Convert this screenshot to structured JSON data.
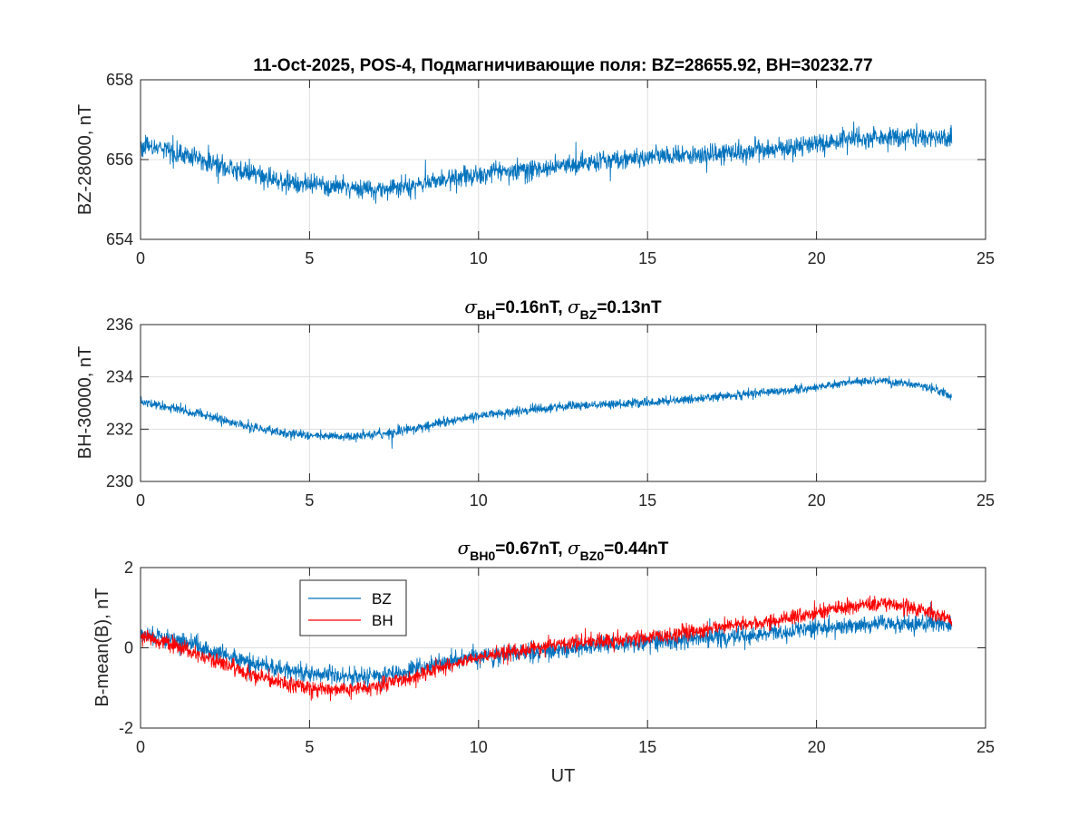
{
  "colors": {
    "bz": "#0072BD",
    "bh": "#FF0000",
    "axis": "#262626",
    "grid": "#dfdfdf",
    "background": "#ffffff"
  },
  "chart_data": [
    {
      "type": "line",
      "title": "11-Oct-2025, POS-4, Подмагничивающие поля: BZ=28655.92,  BH=30232.77",
      "xlabel": "",
      "ylabel": "BZ-28000, nT",
      "xlim": [
        0,
        25
      ],
      "ylim": [
        654,
        658
      ],
      "xticks": [
        0,
        5,
        10,
        15,
        20,
        25
      ],
      "yticks": [
        654,
        656,
        658
      ],
      "grid": true,
      "series": [
        {
          "name": "BZ",
          "color_key": "bz",
          "noise": 0.22,
          "x": [
            0,
            1,
            2,
            3,
            4,
            5,
            6,
            7,
            7.6,
            8,
            9,
            10,
            10.5,
            11,
            12,
            13,
            14,
            15,
            16,
            17,
            18,
            19,
            20,
            21,
            22,
            23,
            23.5,
            24
          ],
          "y": [
            656.35,
            656.2,
            655.95,
            655.7,
            655.5,
            655.35,
            655.3,
            655.25,
            655.3,
            655.35,
            655.5,
            655.6,
            655.7,
            655.75,
            655.8,
            655.9,
            656.0,
            656.05,
            656.1,
            656.15,
            656.2,
            656.3,
            656.4,
            656.5,
            656.55,
            656.6,
            656.55,
            656.55
          ]
        }
      ]
    },
    {
      "type": "line",
      "title": {
        "sigma": "σ",
        "sub1": "BH",
        "val1": "=0.16nT, ",
        "sub2": "BZ",
        "val2": "=0.13nT"
      },
      "xlabel": "",
      "ylabel": "BH-30000, nT",
      "xlim": [
        0,
        25
      ],
      "ylim": [
        230,
        236
      ],
      "xticks": [
        0,
        5,
        10,
        15,
        20,
        25
      ],
      "yticks": [
        230,
        232,
        234,
        236
      ],
      "grid": true,
      "series": [
        {
          "name": "BH",
          "color_key": "bz",
          "noise": 0.15,
          "x": [
            0,
            1,
            2,
            3,
            4,
            5,
            6,
            7,
            8,
            9,
            10,
            11,
            12,
            13,
            14,
            15,
            16,
            17,
            18,
            19,
            20,
            21,
            22,
            23,
            23.5,
            24
          ],
          "y": [
            233.05,
            232.8,
            232.5,
            232.15,
            231.9,
            231.75,
            231.7,
            231.8,
            232.0,
            232.3,
            232.5,
            232.65,
            232.8,
            232.9,
            232.95,
            233.0,
            233.1,
            233.25,
            233.35,
            233.45,
            233.6,
            233.8,
            233.85,
            233.7,
            233.5,
            233.3
          ]
        }
      ]
    },
    {
      "type": "line",
      "title": {
        "sigma": "σ",
        "sub1": "BH0",
        "val1": "=0.67nT, ",
        "sub2": "BZ0",
        "val2": "=0.44nT"
      },
      "xlabel": "UT",
      "ylabel": "B-mean(B), nT",
      "xlim": [
        0,
        25
      ],
      "ylim": [
        -2,
        2
      ],
      "xticks": [
        0,
        5,
        10,
        15,
        20,
        25
      ],
      "yticks": [
        -2,
        0,
        2
      ],
      "grid": true,
      "legend": {
        "placement": "top-left",
        "entries": [
          "BZ",
          "BH"
        ]
      },
      "series": [
        {
          "name": "BZ",
          "color_key": "bz",
          "noise": 0.2,
          "x": [
            0,
            1,
            2,
            3,
            4,
            5,
            6,
            7,
            7.6,
            8,
            9,
            10,
            11,
            12,
            13,
            14,
            15,
            16,
            17,
            18,
            19,
            20,
            21,
            22,
            23,
            24
          ],
          "y": [
            0.35,
            0.2,
            -0.05,
            -0.3,
            -0.5,
            -0.65,
            -0.7,
            -0.7,
            -0.65,
            -0.55,
            -0.35,
            -0.25,
            -0.15,
            -0.1,
            0.0,
            0.1,
            0.15,
            0.2,
            0.25,
            0.3,
            0.4,
            0.5,
            0.55,
            0.6,
            0.6,
            0.6
          ]
        },
        {
          "name": "BH",
          "color_key": "bh",
          "noise": 0.17,
          "x": [
            0,
            1,
            2,
            3,
            4,
            5,
            6,
            7,
            8,
            9,
            10,
            11,
            12,
            13,
            14,
            15,
            16,
            17,
            18,
            19,
            20,
            21,
            22,
            23,
            23.5,
            24
          ],
          "y": [
            0.3,
            0.05,
            -0.25,
            -0.6,
            -0.85,
            -1.0,
            -1.05,
            -0.95,
            -0.75,
            -0.45,
            -0.25,
            -0.1,
            0.05,
            0.15,
            0.2,
            0.25,
            0.35,
            0.5,
            0.6,
            0.7,
            0.85,
            1.05,
            1.1,
            1.0,
            0.85,
            0.65
          ]
        }
      ]
    }
  ]
}
